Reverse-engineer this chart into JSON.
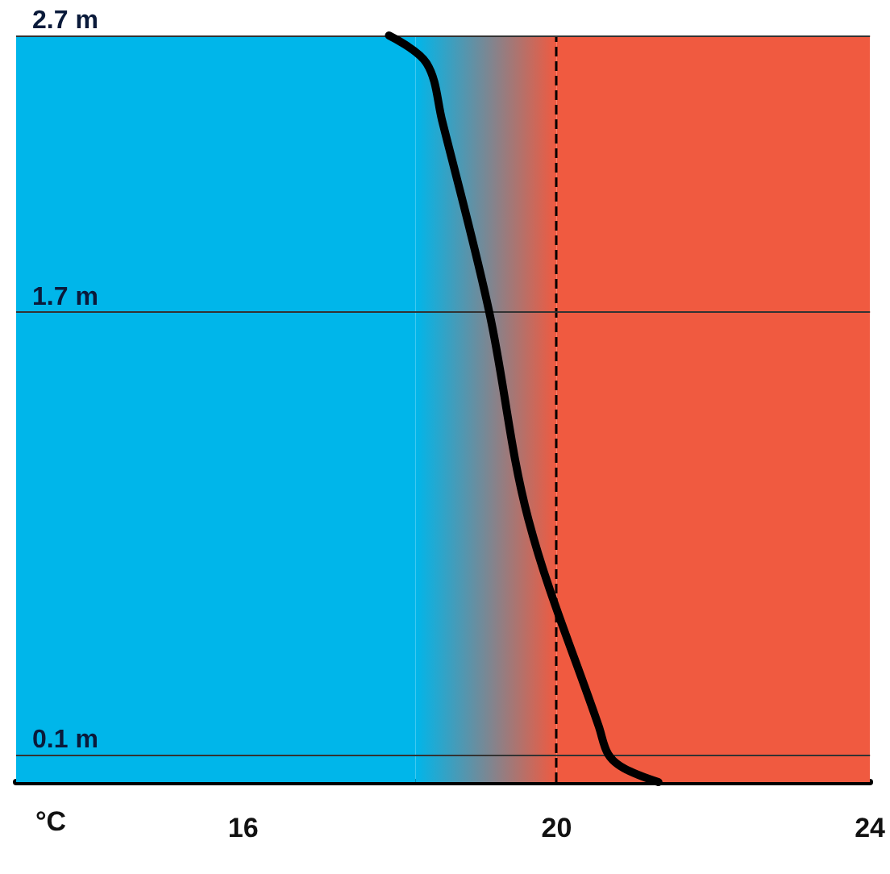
{
  "chart_data": {
    "type": "line",
    "xlabel": "°C",
    "x": [
      17.86,
      18.34,
      18.54,
      19.14,
      19.64,
      20.54,
      20.66,
      20.86,
      21.3
    ],
    "series": [
      {
        "color": "#000000",
        "values": [
          2.7,
          2.6,
          2.39,
          1.7,
          0.95,
          0.2,
          0.1,
          0.05,
          0
        ]
      }
    ],
    "xlim": [
      13.1,
      24
    ],
    "xticks": [
      16,
      20,
      24
    ],
    "ylim": [
      0,
      2.7
    ],
    "yticks": [
      {
        "value": 0.1,
        "label": "0.1 m"
      },
      {
        "value": 1.7,
        "label": "1.7 m"
      },
      {
        "value": 2.7,
        "label": "2.7 m"
      }
    ],
    "grid": "y",
    "marker": "none",
    "line_style": "solid",
    "bands": [
      {
        "axis": "x",
        "from": 13.1,
        "to": 18.2,
        "color": "#00b6ea"
      },
      {
        "axis": "x",
        "from": 18.2,
        "to": 20
      },
      {
        "axis": "x",
        "from": 20,
        "to": 24,
        "color": "#f05a40"
      }
    ],
    "ref_lines": [
      {
        "axis": "x",
        "value": 20,
        "line_style": "dashed",
        "color": "#000000"
      }
    ]
  }
}
